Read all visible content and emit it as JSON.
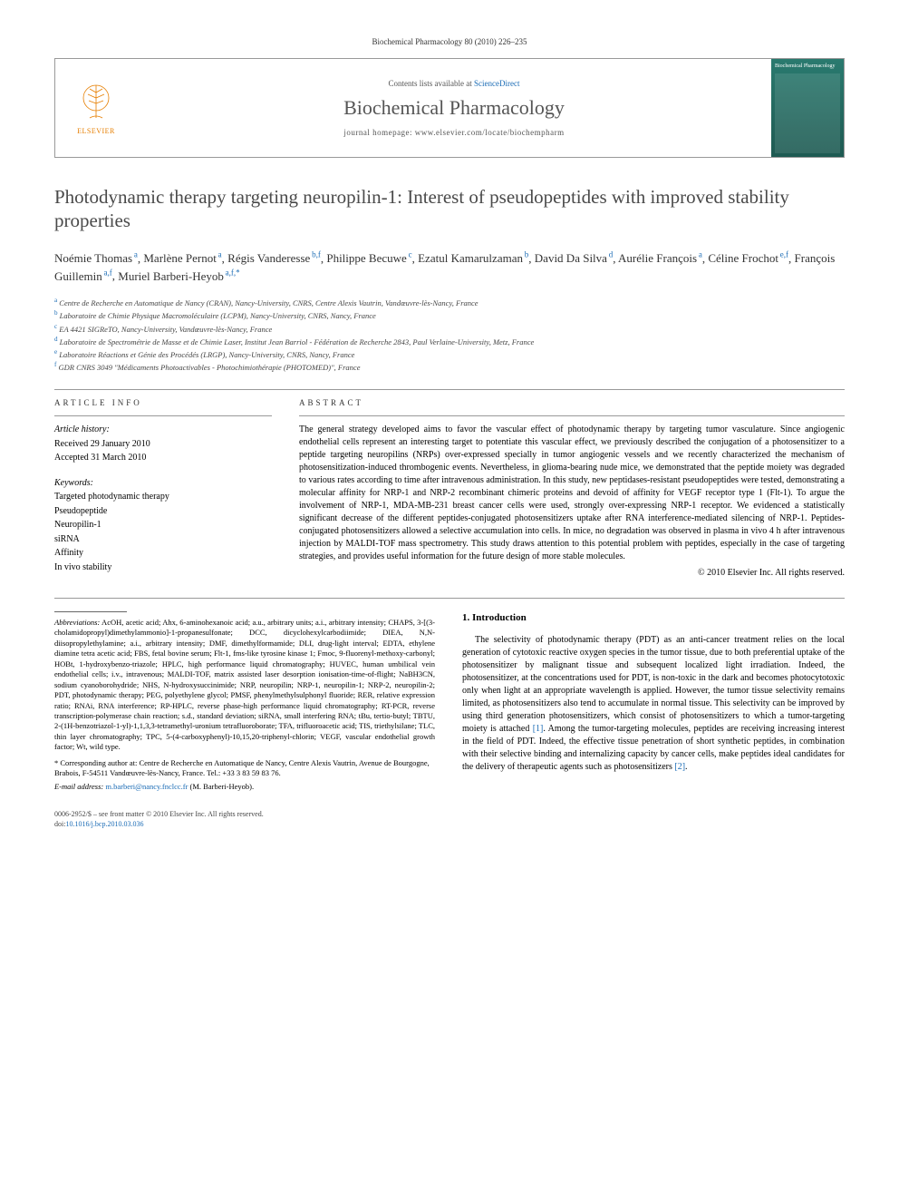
{
  "header": {
    "citation": "Biochemical Pharmacology 80 (2010) 226–235"
  },
  "journalBox": {
    "elsevier": "ELSEVIER",
    "contentsText": "Contents lists available at ",
    "contentsLink": "ScienceDirect",
    "journalName": "Biochemical Pharmacology",
    "homepage": "journal homepage: www.elsevier.com/locate/biochempharm",
    "coverTitle": "Biochemical Pharmacology"
  },
  "article": {
    "title": "Photodynamic therapy targeting neuropilin-1: Interest of pseudopeptides with improved stability properties"
  },
  "authors": [
    {
      "name": "Noémie Thomas",
      "aff": "a"
    },
    {
      "name": "Marlène Pernot",
      "aff": "a"
    },
    {
      "name": "Régis Vanderesse",
      "aff": "b,f"
    },
    {
      "name": "Philippe Becuwe",
      "aff": "c"
    },
    {
      "name": "Ezatul Kamarulzaman",
      "aff": "b"
    },
    {
      "name": "David Da Silva",
      "aff": "d"
    },
    {
      "name": "Aurélie François",
      "aff": "a"
    },
    {
      "name": "Céline Frochot",
      "aff": "e,f"
    },
    {
      "name": "François Guillemin",
      "aff": "a,f"
    },
    {
      "name": "Muriel Barberi-Heyob",
      "aff": "a,f,*"
    }
  ],
  "affiliations": [
    {
      "sup": "a",
      "text": "Centre de Recherche en Automatique de Nancy (CRAN), Nancy-University, CNRS, Centre Alexis Vautrin, Vandœuvre-lès-Nancy, France"
    },
    {
      "sup": "b",
      "text": "Laboratoire de Chimie Physique Macromoléculaire (LCPM), Nancy-University, CNRS, Nancy, France"
    },
    {
      "sup": "c",
      "text": "EA 4421 SIGReTO, Nancy-University, Vandœuvre-lès-Nancy, France"
    },
    {
      "sup": "d",
      "text": "Laboratoire de Spectrométrie de Masse et de Chimie Laser, Institut Jean Barriol - Fédération de Recherche 2843, Paul Verlaine-University, Metz, France"
    },
    {
      "sup": "e",
      "text": "Laboratoire Réactions et Génie des Procédés (LRGP), Nancy-University, CNRS, Nancy, France"
    },
    {
      "sup": "f",
      "text": "GDR CNRS 3049 \"Médicaments Photoactivables - Photochimiothérapie (PHOTOMED)\", France"
    }
  ],
  "articleInfo": {
    "heading": "ARTICLE INFO",
    "historyLabel": "Article history:",
    "received": "Received 29 January 2010",
    "accepted": "Accepted 31 March 2010",
    "keywordsLabel": "Keywords:",
    "keywords": [
      "Targeted photodynamic therapy",
      "Pseudopeptide",
      "Neuropilin-1",
      "siRNA",
      "Affinity",
      "In vivo stability"
    ]
  },
  "abstract": {
    "heading": "ABSTRACT",
    "text": "The general strategy developed aims to favor the vascular effect of photodynamic therapy by targeting tumor vasculature. Since angiogenic endothelial cells represent an interesting target to potentiate this vascular effect, we previously described the conjugation of a photosensitizer to a peptide targeting neuropilins (NRPs) over-expressed specially in tumor angiogenic vessels and we recently characterized the mechanism of photosensitization-induced thrombogenic events. Nevertheless, in glioma-bearing nude mice, we demonstrated that the peptide moiety was degraded to various rates according to time after intravenous administration. In this study, new peptidases-resistant pseudopeptides were tested, demonstrating a molecular affinity for NRP-1 and NRP-2 recombinant chimeric proteins and devoid of affinity for VEGF receptor type 1 (Flt-1). To argue the involvement of NRP-1, MDA-MB-231 breast cancer cells were used, strongly over-expressing NRP-1 receptor. We evidenced a statistically significant decrease of the different peptides-conjugated photosensitizers uptake after RNA interference-mediated silencing of NRP-1. Peptides-conjugated photosensitizers allowed a selective accumulation into cells. In mice, no degradation was observed in plasma in vivo 4 h after intravenous injection by MALDI-TOF mass spectrometry. This study draws attention to this potential problem with peptides, especially in the case of targeting strategies, and provides useful information for the future design of more stable molecules.",
    "copyright": "© 2010 Elsevier Inc. All rights reserved."
  },
  "abbreviations": {
    "label": "Abbreviations:",
    "text": " AcOH, acetic acid; Ahx, 6-aminohexanoic acid; a.u., arbitrary units; a.i., arbitrary intensity; CHAPS, 3-[(3-cholamidopropyl)dimethylammonio]-1-propanesulfonate; DCC, dicyclohexylcarbodiimide; DIEA, N,N-diisopropylethylamine; a.i., arbitrary intensity; DMF, dimethylformamide; DLI, drug-light interval; EDTA, ethylene diamine tetra acetic acid; FBS, fetal bovine serum; Flt-1, fms-like tyrosine kinase 1; Fmoc, 9-fluorenyl-methoxy-carbonyl; HOBt, 1-hydroxybenzo-triazole; HPLC, high performance liquid chromatography; HUVEC, human umbilical vein endothelial cells; i.v., intravenous; MALDI-TOF, matrix assisted laser desorption ionisation-time-of-flight; NaBH3CN, sodium cyanoborohydride; NHS, N-hydroxysuccinimide; NRP, neuropilin; NRP-1, neuropilin-1; NRP-2, neuropilin-2; PDT, photodynamic therapy; PEG, polyethylene glycol; PMSF, phenylmethylsulphonyl fluoride; RER, relative expression ratio; RNAi, RNA interference; RP-HPLC, reverse phase-high performance liquid chromatography; RT-PCR, reverse transcription-polymerase chain reaction; s.d., standard deviation; siRNA, small interfering RNA; tBu, tertio-butyl; TBTU, 2-(1H-benzotriazol-1-yl)-1,1,3,3-tetramethyl-uronium tetrafluoroborate; TFA, trifluoroacetic acid; TIS, triethylsilane; TLC, thin layer chromatography; TPC, 5-(4-carboxyphenyl)-10,15,20-triphenyl-chlorin; VEGF, vascular endothelial growth factor; Wt, wild type."
  },
  "corresponding": {
    "text": "* Corresponding author at: Centre de Recherche en Automatique de Nancy, Centre Alexis Vautrin, Avenue de Bourgogne, Brabois, F-54511 Vandœuvre-lès-Nancy, France. Tel.: +33 3 83 59 83 76.",
    "emailLabel": "E-mail address: ",
    "email": "m.barberi@nancy.fnclcc.fr",
    "emailSuffix": " (M. Barberi-Heyob)."
  },
  "introduction": {
    "heading": "1. Introduction",
    "para": "The selectivity of photodynamic therapy (PDT) as an anti-cancer treatment relies on the local generation of cytotoxic reactive oxygen species in the tumor tissue, due to both preferential uptake of the photosensitizer by malignant tissue and subsequent localized light irradiation. Indeed, the photosensitizer, at the concentrations used for PDT, is non-toxic in the dark and becomes photocytotoxic only when light at an appropriate wavelength is applied. However, the tumor tissue selectivity remains limited, as photosensitizers also tend to accumulate in normal tissue. This selectivity can be improved by using third generation photosensitizers, which consist of photosensitizers to which a tumor-targeting moiety is attached [1]. Among the tumor-targeting molecules, peptides are receiving increasing interest in the field of PDT. Indeed, the effective tissue penetration of short synthetic peptides, in combination with their selective binding and internalizing capacity by cancer cells, make peptides ideal candidates for the delivery of therapeutic agents such as photosensitizers [2]."
  },
  "footer": {
    "line1": "0006-2952/$ – see front matter © 2010 Elsevier Inc. All rights reserved.",
    "doiLabel": "doi:",
    "doi": "10.1016/j.bcp.2010.03.036"
  }
}
